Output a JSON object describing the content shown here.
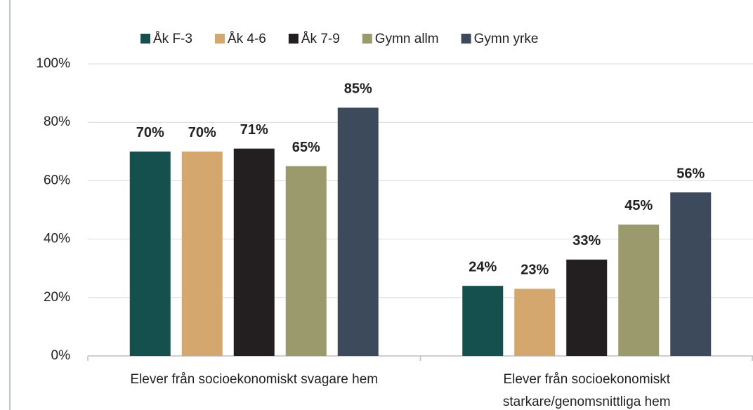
{
  "chart_data": {
    "type": "bar",
    "categories": [
      "Elever från socioekonomiskt svagare hem",
      "Elever från socioekonomiskt starkare/genomsnittliga hem"
    ],
    "series": [
      {
        "name": "Åk F-3",
        "color": "#154f4e",
        "values": [
          70,
          24
        ],
        "value_labels": [
          "70%",
          "24%"
        ]
      },
      {
        "name": "Åk 4-6",
        "color": "#d4a76f",
        "values": [
          70,
          23
        ],
        "value_labels": [
          "70%",
          "23%"
        ]
      },
      {
        "name": "Åk 7-9",
        "color": "#231f20",
        "values": [
          71,
          33
        ],
        "value_labels": [
          "71%",
          "33%"
        ]
      },
      {
        "name": "Gymn allm",
        "color": "#9b9a6c",
        "values": [
          65,
          45
        ],
        "value_labels": [
          "65%",
          "45%"
        ]
      },
      {
        "name": "Gymn yrke",
        "color": "#3d4a5c",
        "values": [
          85,
          56
        ],
        "value_labels": [
          "85%",
          "56%"
        ]
      }
    ],
    "ylim": [
      0,
      100
    ],
    "yticks": [
      {
        "value": 0,
        "label": "0%"
      },
      {
        "value": 20,
        "label": "20%"
      },
      {
        "value": 40,
        "label": "40%"
      },
      {
        "value": 60,
        "label": "60%"
      },
      {
        "value": 80,
        "label": "80%"
      },
      {
        "value": 100,
        "label": "100%"
      }
    ],
    "grid": true,
    "legend": "top"
  }
}
